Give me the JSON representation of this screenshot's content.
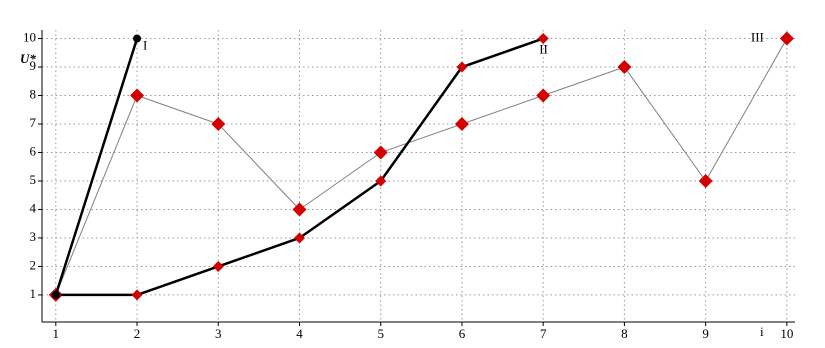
{
  "chart_data": {
    "type": "line",
    "y_label": "U*",
    "x_label": "i",
    "xlim": [
      0.83,
      10.1
    ],
    "ylim": [
      0.05,
      10.3
    ],
    "xticks": [
      1,
      2,
      3,
      4,
      5,
      6,
      7,
      8,
      9,
      10
    ],
    "yticks": [
      1,
      2,
      3,
      4,
      5,
      6,
      7,
      8,
      9,
      10
    ],
    "grid": true,
    "series": [
      {
        "name": "III",
        "color": "#808080",
        "marker": "diamond",
        "marker_color": "#d40000",
        "x": [
          1,
          2,
          3,
          4,
          5,
          6,
          7,
          8,
          9,
          10
        ],
        "values": [
          1,
          8,
          7,
          4,
          6,
          7,
          8,
          9,
          5,
          10
        ]
      },
      {
        "name": "II",
        "color": "#000000",
        "marker": "diamond",
        "marker_color": "#d40000",
        "x": [
          1,
          2,
          3,
          4,
          5,
          6,
          7
        ],
        "values": [
          1,
          1,
          2,
          3,
          5,
          9,
          10
        ]
      },
      {
        "name": "I",
        "color": "#000000",
        "marker": "circle",
        "marker_color": "#000000",
        "x": [
          1,
          2
        ],
        "values": [
          1,
          10
        ]
      }
    ]
  }
}
